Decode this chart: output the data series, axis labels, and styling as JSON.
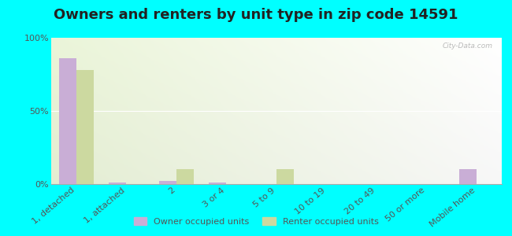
{
  "title": "Owners and renters by unit type in zip code 14591",
  "categories": [
    "1, detached",
    "1, attached",
    "2",
    "3 or 4",
    "5 to 9",
    "10 to 19",
    "20 to 49",
    "50 or more",
    "Mobile home"
  ],
  "owner_values": [
    86,
    1,
    2,
    1,
    0,
    0,
    0,
    0,
    10
  ],
  "renter_values": [
    78,
    0,
    10,
    0,
    10,
    0,
    0,
    0,
    0
  ],
  "owner_color": "#c9aed6",
  "renter_color": "#ccd9a0",
  "background_color": "#00ffff",
  "legend_owner": "Owner occupied units",
  "legend_renter": "Renter occupied units",
  "ylim": [
    0,
    100
  ],
  "yticks": [
    0,
    50,
    100
  ],
  "ytick_labels": [
    "0%",
    "50%",
    "100%"
  ],
  "bar_width": 0.35,
  "title_fontsize": 13,
  "axis_label_fontsize": 8,
  "watermark": "City-Data.com"
}
